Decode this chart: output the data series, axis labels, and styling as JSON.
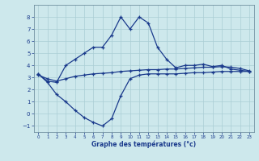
{
  "xlabel": "Graphe des températures (°c)",
  "x": [
    0,
    1,
    2,
    3,
    4,
    5,
    6,
    7,
    8,
    9,
    10,
    11,
    12,
    13,
    14,
    15,
    16,
    17,
    18,
    19,
    20,
    21,
    22,
    23
  ],
  "max_temps": [
    3.3,
    2.7,
    2.6,
    4.0,
    4.5,
    5.0,
    5.5,
    5.5,
    6.5,
    8.0,
    7.0,
    8.0,
    7.5,
    5.5,
    4.5,
    3.8,
    4.0,
    4.0,
    4.1,
    3.9,
    4.0,
    3.7,
    3.6,
    3.5
  ],
  "mean_temps": [
    3.2,
    2.9,
    2.7,
    2.9,
    3.1,
    3.2,
    3.3,
    3.35,
    3.4,
    3.5,
    3.55,
    3.6,
    3.65,
    3.65,
    3.7,
    3.7,
    3.75,
    3.8,
    3.85,
    3.85,
    3.9,
    3.85,
    3.75,
    3.55
  ],
  "min_temps": [
    3.3,
    2.6,
    1.6,
    1.0,
    0.3,
    -0.3,
    -0.7,
    -1.0,
    -0.4,
    1.5,
    2.9,
    3.2,
    3.3,
    3.3,
    3.3,
    3.3,
    3.35,
    3.4,
    3.4,
    3.45,
    3.5,
    3.5,
    3.5,
    3.5
  ],
  "line_color": "#1a3a8c",
  "bg_color": "#cde8ec",
  "grid_color": "#aacdd4",
  "ylim": [
    -1.5,
    9.0
  ],
  "xlim": [
    -0.5,
    23.5
  ],
  "yticks": [
    -1,
    0,
    1,
    2,
    3,
    4,
    5,
    6,
    7,
    8
  ],
  "xticks": [
    0,
    1,
    2,
    3,
    4,
    5,
    6,
    7,
    8,
    9,
    10,
    11,
    12,
    13,
    14,
    15,
    16,
    17,
    18,
    19,
    20,
    21,
    22,
    23
  ]
}
